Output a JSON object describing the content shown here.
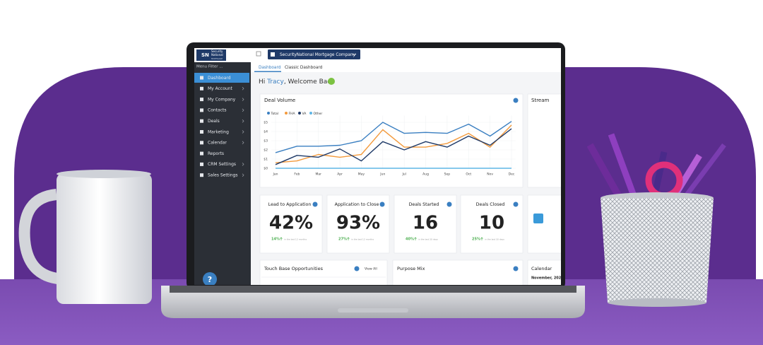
{
  "header": {
    "logo_mark": "SN",
    "logo_line1": "Security",
    "logo_line2": "National",
    "logo_line3": "MORTGAGE",
    "company": "SecurityNational Mortgage Company"
  },
  "sidebar": {
    "filter": "Menu Filter ...",
    "items": [
      "Dashboard",
      "My Account",
      "My Company",
      "Contacts",
      "Deals",
      "Marketing",
      "Calendar",
      "Reports",
      "CRM Settings",
      "Sales Settings"
    ],
    "help": "?"
  },
  "tabs": [
    "Dashboard",
    "Classic Dashboard"
  ],
  "greeting": {
    "prefix": "Hi ",
    "name": "Tracy",
    "suffix": ", Welcome Back"
  },
  "deal_volume": {
    "type": "line",
    "title": "Deal Volume",
    "categories": [
      "Jan",
      "Feb",
      "Mar",
      "Apr",
      "May",
      "Jun",
      "Jul",
      "Aug",
      "Sep",
      "Oct",
      "Nov",
      "Dec"
    ],
    "series": [
      {
        "name": "Total",
        "color": "#3a7fc1",
        "values": [
          1.7,
          2.4,
          2.4,
          2.5,
          3.0,
          5.0,
          3.8,
          3.9,
          3.8,
          4.8,
          3.5,
          5.1
        ]
      },
      {
        "name": "FHA",
        "color": "#f39a3c",
        "values": [
          0.6,
          0.8,
          1.5,
          1.2,
          1.5,
          4.2,
          2.3,
          2.3,
          2.7,
          3.8,
          2.3,
          4.7
        ]
      },
      {
        "name": "VA",
        "color": "#1f3a68",
        "values": [
          0.4,
          1.4,
          1.2,
          2.1,
          0.8,
          2.9,
          2.0,
          2.9,
          2.3,
          3.5,
          2.5,
          4.3
        ]
      },
      {
        "name": "Other",
        "color": "#5fb6e6",
        "values": [
          0,
          0,
          0,
          0,
          0,
          0,
          0,
          0,
          0,
          0,
          0,
          0
        ]
      }
    ],
    "ylim": [
      0,
      5.5
    ],
    "yticks": [
      {
        "value": 0,
        "label": "$0"
      },
      {
        "value": 1,
        "label": "$1"
      },
      {
        "value": 2,
        "label": "$2"
      },
      {
        "value": 3,
        "label": "$3"
      },
      {
        "value": 4,
        "label": "$4"
      },
      {
        "value": 5,
        "label": "$5"
      }
    ],
    "grid": true
  },
  "stream": {
    "title": "Stream"
  },
  "kpis": [
    {
      "title": "Lead to Application",
      "value": "42%",
      "change": "14%",
      "period": "in the last 12 months"
    },
    {
      "title": "Application to Close",
      "value": "93%",
      "change": "27%",
      "period": "in the last 12 months"
    },
    {
      "title": "Deals Started",
      "value": "16",
      "change": "40%",
      "period": "in the last 30 days"
    },
    {
      "title": "Deals Closed",
      "value": "10",
      "change": "25%",
      "period": "in the last 30 days"
    }
  ],
  "panels": {
    "touch_base": "Touch Base Opportunities",
    "view_all": "View All",
    "purpose_mix": "Purpose Mix",
    "calendar": "Calendar",
    "calendar_month": "November, 202"
  }
}
